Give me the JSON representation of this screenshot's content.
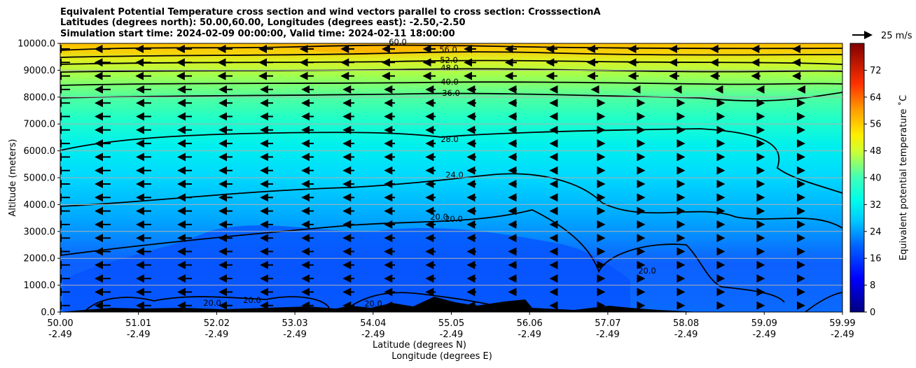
{
  "chart_data": {
    "type": "heatmap",
    "title_lines": [
      "Equivalent Potential Temperature cross section and wind vectors parallel to cross section: CrosssectionA",
      "Latitudes (degrees north): 50.00,60.00, Longitudes (degrees east): -2.50,-2.50",
      "Simulation start time: 2024-02-09 00:00:00, Valid time: 2024-02-11 18:00:00"
    ],
    "ylabel": "Altitude (meters)",
    "xlabel_lines": [
      "Latitude (degrees N)",
      "Longitude (degrees E)"
    ],
    "ylim": [
      0,
      10000
    ],
    "y_ticks": [
      0,
      1000,
      2000,
      3000,
      4000,
      5000,
      6000,
      7000,
      8000,
      9000,
      10000
    ],
    "y_tick_labels": [
      "0.0",
      "1000.0",
      "2000.0",
      "3000.0",
      "4000.0",
      "5000.0",
      "6000.0",
      "7000.0",
      "8000.0",
      "9000.0",
      "10000.0"
    ],
    "x_ticks": [
      {
        "lat": "50.00",
        "lon": "-2.49"
      },
      {
        "lat": "51.01",
        "lon": "-2.49"
      },
      {
        "lat": "52.02",
        "lon": "-2.49"
      },
      {
        "lat": "53.03",
        "lon": "-2.49"
      },
      {
        "lat": "54.04",
        "lon": "-2.49"
      },
      {
        "lat": "55.05",
        "lon": "-2.49"
      },
      {
        "lat": "56.06",
        "lon": "-2.49"
      },
      {
        "lat": "57.07",
        "lon": "-2.49"
      },
      {
        "lat": "58.08",
        "lon": "-2.49"
      },
      {
        "lat": "59.09",
        "lon": "-2.49"
      },
      {
        "lat": "59.99",
        "lon": "-2.49"
      }
    ],
    "colorbar": {
      "label": "Equivalent potential temperature ˚C",
      "range": [
        0,
        80
      ],
      "ticks": [
        0,
        8,
        16,
        24,
        32,
        40,
        48,
        56,
        64,
        72
      ],
      "colormap": "jet"
    },
    "grid": "horizontal",
    "wind_key": {
      "label": "25 m/s"
    },
    "contour_labels": [
      {
        "text": "60.0"
      },
      {
        "text": "56.0"
      },
      {
        "text": "52.0"
      },
      {
        "text": "48.0"
      },
      {
        "text": "40.0"
      },
      {
        "text": "36.0"
      },
      {
        "text": "28.0"
      },
      {
        "text": "24.0"
      },
      {
        "text": "20.0"
      },
      {
        "text": "20.0"
      },
      {
        "text": "20.0"
      },
      {
        "text": "20.0"
      },
      {
        "text": "20.0"
      },
      {
        "text": "20.0"
      }
    ]
  }
}
